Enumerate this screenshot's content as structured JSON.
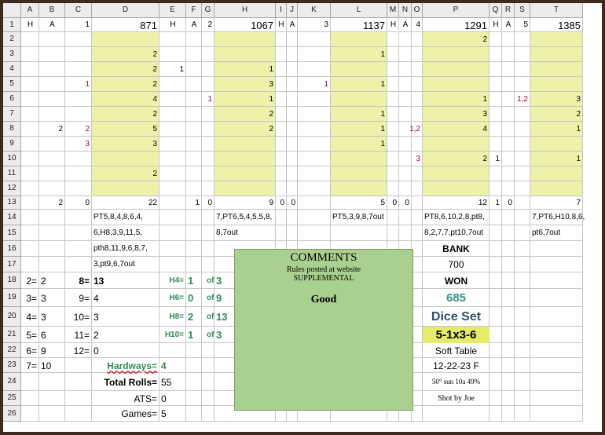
{
  "columns": [
    "A",
    "B",
    "C",
    "D",
    "E",
    "F",
    "G",
    "H",
    "I",
    "J",
    "K",
    "L",
    "M",
    "N",
    "O",
    "P",
    "Q",
    "R",
    "S",
    "T"
  ],
  "rows": [
    "1",
    "2",
    "3",
    "4",
    "5",
    "6",
    "7",
    "8",
    "9",
    "10",
    "11",
    "12",
    "13",
    "14",
    "15",
    "16",
    "17",
    "18",
    "19",
    "20",
    "21",
    "22",
    "23",
    "24",
    "25",
    "26"
  ],
  "headers_row1": {
    "A": "H",
    "B": "A",
    "C": "1",
    "D": "871",
    "E": "H",
    "F": "A",
    "G": "2",
    "H": "1067",
    "I": "H",
    "J": "A",
    "K": "3",
    "L": "1137",
    "M": "H",
    "N": "A",
    "O": "4",
    "P": "1291",
    "Q": "H",
    "R": "A",
    "S": "5",
    "T": "1385"
  },
  "cells": [
    {
      "col": "P",
      "row": 2,
      "v": "2"
    },
    {
      "col": "D",
      "row": 3,
      "v": "2"
    },
    {
      "col": "L",
      "row": 3,
      "v": "1"
    },
    {
      "col": "D",
      "row": 4,
      "v": "2"
    },
    {
      "col": "E",
      "row": 4,
      "v": "1"
    },
    {
      "col": "H",
      "row": 4,
      "v": "1"
    },
    {
      "col": "C",
      "row": 5,
      "v": "1",
      "red": true
    },
    {
      "col": "D",
      "row": 5,
      "v": "2"
    },
    {
      "col": "H",
      "row": 5,
      "v": "3"
    },
    {
      "col": "K",
      "row": 5,
      "v": "1",
      "red": true
    },
    {
      "col": "L",
      "row": 5,
      "v": "1"
    },
    {
      "col": "D",
      "row": 6,
      "v": "4"
    },
    {
      "col": "G",
      "row": 6,
      "v": "1",
      "red": true
    },
    {
      "col": "H",
      "row": 6,
      "v": "1"
    },
    {
      "col": "P",
      "row": 6,
      "v": "1"
    },
    {
      "col": "S",
      "row": 6,
      "v": "1,2",
      "red": true
    },
    {
      "col": "T",
      "row": 6,
      "v": "3"
    },
    {
      "col": "D",
      "row": 7,
      "v": "2"
    },
    {
      "col": "H",
      "row": 7,
      "v": "2"
    },
    {
      "col": "L",
      "row": 7,
      "v": "1"
    },
    {
      "col": "P",
      "row": 7,
      "v": "3"
    },
    {
      "col": "T",
      "row": 7,
      "v": "2"
    },
    {
      "col": "B",
      "row": 8,
      "v": "2"
    },
    {
      "col": "C",
      "row": 8,
      "v": "2",
      "red": true
    },
    {
      "col": "D",
      "row": 8,
      "v": "5"
    },
    {
      "col": "H",
      "row": 8,
      "v": "2"
    },
    {
      "col": "L",
      "row": 8,
      "v": "1"
    },
    {
      "col": "O",
      "row": 8,
      "v": "1,2",
      "red": true
    },
    {
      "col": "P",
      "row": 8,
      "v": "4"
    },
    {
      "col": "T",
      "row": 8,
      "v": "1"
    },
    {
      "col": "C",
      "row": 9,
      "v": "3",
      "red": true
    },
    {
      "col": "D",
      "row": 9,
      "v": "3"
    },
    {
      "col": "L",
      "row": 9,
      "v": "1"
    },
    {
      "col": "O",
      "row": 10,
      "v": "3",
      "red": true
    },
    {
      "col": "P",
      "row": 10,
      "v": "2"
    },
    {
      "col": "Q",
      "row": 10,
      "v": "1"
    },
    {
      "col": "T",
      "row": 10,
      "v": "1"
    },
    {
      "col": "D",
      "row": 11,
      "v": "2"
    },
    {
      "col": "B",
      "row": 13,
      "v": "2"
    },
    {
      "col": "C",
      "row": 13,
      "v": "0"
    },
    {
      "col": "D",
      "row": 13,
      "v": "22"
    },
    {
      "col": "F",
      "row": 13,
      "v": "1"
    },
    {
      "col": "G",
      "row": 13,
      "v": "0"
    },
    {
      "col": "H",
      "row": 13,
      "v": "9"
    },
    {
      "col": "I",
      "row": 13,
      "v": "0"
    },
    {
      "col": "J",
      "row": 13,
      "v": "0"
    },
    {
      "col": "L",
      "row": 13,
      "v": "5"
    },
    {
      "col": "M",
      "row": 13,
      "v": "0"
    },
    {
      "col": "N",
      "row": 13,
      "v": "0"
    },
    {
      "col": "P",
      "row": 13,
      "v": "12"
    },
    {
      "col": "Q",
      "row": 13,
      "v": "1"
    },
    {
      "col": "R",
      "row": 13,
      "v": "0"
    },
    {
      "col": "T",
      "row": 13,
      "v": "7"
    }
  ],
  "roll_notes": [
    {
      "col": "D",
      "row": 14,
      "v": "PT5,8,4,8,6,4,"
    },
    {
      "col": "D",
      "row": 15,
      "v": "6,H8,3,9,11,5,"
    },
    {
      "col": "D",
      "row": 16,
      "v": "pth8,11,9,6,8,7,"
    },
    {
      "col": "D",
      "row": 17,
      "v": "3,pt9,6,7out"
    },
    {
      "col": "H",
      "row": 14,
      "v": "7,PT6,5,4,5,5,8,"
    },
    {
      "col": "H",
      "row": 15,
      "v": "8,7out"
    },
    {
      "col": "L",
      "row": 14,
      "v": "PT5,3,9,8,7out"
    },
    {
      "col": "P",
      "row": 14,
      "v": "PT8,6,10,2,8,pt8,"
    },
    {
      "col": "P",
      "row": 15,
      "v": "8,2,7,7,pt10,7out"
    },
    {
      "col": "T",
      "row": 14,
      "v": "7,PT6,H10,8,6,"
    },
    {
      "col": "T",
      "row": 15,
      "v": "pt6,7out"
    }
  ],
  "totals": [
    {
      "label": "2=",
      "value": "2",
      "row": 18
    },
    {
      "label": "3=",
      "value": "3",
      "row": 19
    },
    {
      "label": "4=",
      "value": "3",
      "row": 20
    },
    {
      "label": "5=",
      "value": "6",
      "row": 21
    },
    {
      "label": "6=",
      "value": "9",
      "row": 22
    },
    {
      "label": "7=",
      "value": "10",
      "row": 23
    }
  ],
  "totals2": [
    {
      "label": "8=",
      "value": "13",
      "row": 18,
      "bold": true
    },
    {
      "label": "9=",
      "value": "4",
      "row": 19
    },
    {
      "label": "10=",
      "value": "3",
      "row": 20
    },
    {
      "label": "11=",
      "value": "2",
      "row": 21
    },
    {
      "label": "12=",
      "value": "0",
      "row": 22
    }
  ],
  "hardways": [
    {
      "label": "H4=",
      "value": "1",
      "of": "of",
      "total": "3",
      "row": 18
    },
    {
      "label": "H6=",
      "value": "0",
      "of": "of",
      "total": "9",
      "row": 19
    },
    {
      "label": "H8=",
      "value": "2",
      "of": "of",
      "total": "13",
      "row": 20
    },
    {
      "label": "H10=",
      "value": "1",
      "of": "of",
      "total": "3",
      "row": 21
    }
  ],
  "summary": {
    "hardways_label": "Hardways=",
    "hardways_value": "4",
    "total_rolls_label": "Total Rolls=",
    "total_rolls_value": "55",
    "ats_label": "ATS=",
    "ats_value": "0",
    "games_label": "Games=",
    "games_value": "5"
  },
  "comments": {
    "title": "COMMENTS",
    "line1": "Rules posted at website",
    "line2": "SUPPLEMENTAL",
    "body": "Good"
  },
  "right_panel": {
    "bank_label": "BANK",
    "bank_value": "700",
    "won_label": "WON",
    "won_value": "685",
    "dice_set_label": "Dice Set",
    "dice_set_value": "5-1x3-6",
    "table": "Soft Table",
    "date": "12-22-23 F",
    "weather": "50° sun 10a 49%",
    "shooter": "Shot by Joe"
  },
  "colors": {
    "frame": "#3d2b1f",
    "yellow_fill": "#eef1a8",
    "comment_fill": "#a9d08e",
    "green_text": "#2e8b57",
    "red_text": "#a0004a",
    "won_value": "#3d8f8f",
    "dice_set": "#2f4f6f",
    "dice_value_fill": "#e5ec6b"
  }
}
